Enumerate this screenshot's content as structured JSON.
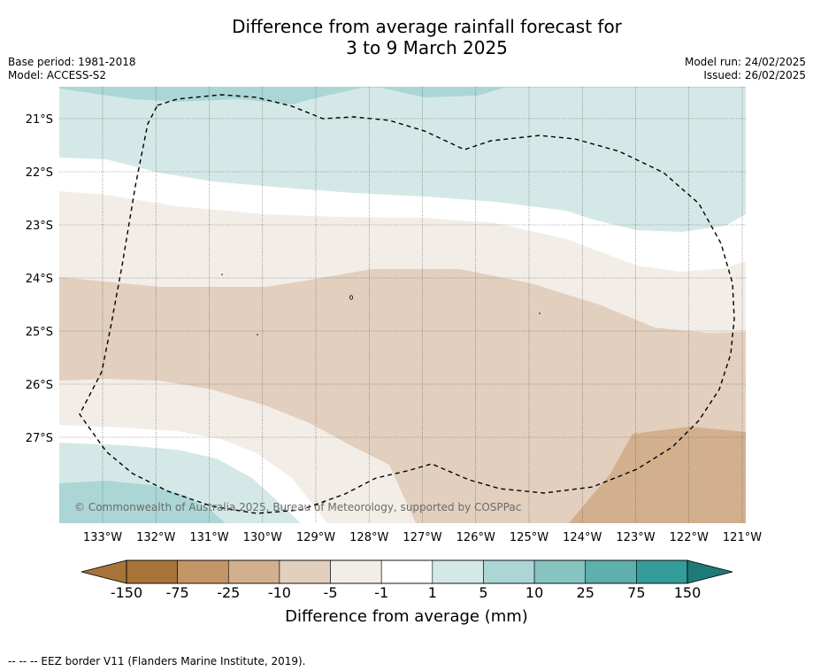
{
  "title": {
    "line1": "Difference from average rainfall forecast for",
    "line2": "3 to 9 March 2025"
  },
  "meta": {
    "base_period": "Base period: 1981-2018",
    "model": "Model: ACCESS-S2",
    "model_run": "Model run: 24/02/2025",
    "issued": "Issued: 26/02/2025"
  },
  "map": {
    "lat_ticks": [
      "21°S",
      "22°S",
      "23°S",
      "24°S",
      "25°S",
      "26°S",
      "27°S"
    ],
    "lon_ticks": [
      "133°W",
      "132°W",
      "131°W",
      "130°W",
      "129°W",
      "128°W",
      "127°W",
      "126°W",
      "125°W",
      "124°W",
      "123°W",
      "122°W",
      "121°W"
    ],
    "copyright": "© Commonwealth of Australia 2025, Bureau of Meteorology, supported by COSPPac",
    "colors": {
      "c_m150": "#a67439",
      "c_m75": "#c49566",
      "c_m25": "#d2b08e",
      "c_m10": "#e2cfbe",
      "c_m5": "#f3ede8",
      "c_m1": "#ffffff",
      "c_p1": "#d4e9e7",
      "c_p5": "#abd6d5",
      "c_p10": "#86c4c2",
      "c_p25": "#5eafad",
      "c_p75": "#349c99",
      "c_p150": "#1f7a77"
    }
  },
  "colorbar": {
    "ticks": [
      "-150",
      "-75",
      "-25",
      "-10",
      "-5",
      "-1",
      "1",
      "5",
      "10",
      "25",
      "75",
      "150"
    ],
    "label": "Difference from average (mm)"
  },
  "footnote": "--  --  -- EEZ border V11 (Flanders Marine Institute, 2019)."
}
